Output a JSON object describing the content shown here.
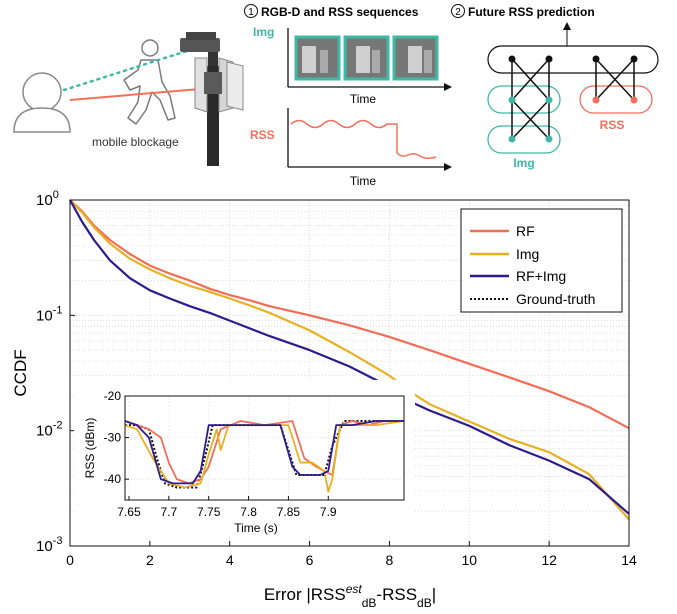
{
  "diagram": {
    "step1_num": "1",
    "step1_title": "RGB-D and RSS sequences",
    "step2_num": "2",
    "step2_title": "Future RSS prediction",
    "blockage_label": "mobile blockage",
    "img_label": "Img",
    "rss_label": "RSS",
    "time_label_top": "Time",
    "time_label_bottom": "Time",
    "net_rss_label": "RSS",
    "net_img_label": "Img",
    "colors": {
      "img": "#3fb8a6",
      "rss": "#f0705a"
    }
  },
  "chart_data": [
    {
      "type": "line",
      "title": "",
      "xlabel_prefix": "Error |RSS",
      "xlabel_sup": "est",
      "xlabel_sub1": "dB",
      "xlabel_mid": "-RSS",
      "xlabel_sub2": "dB",
      "xlabel_suffix": "|",
      "ylabel": "CCDF",
      "yscale": "log",
      "xlim": [
        0,
        14
      ],
      "ylim": [
        0.001,
        1
      ],
      "xticks": [
        0,
        2,
        4,
        6,
        8,
        10,
        12,
        14
      ],
      "yticks": [
        {
          "value": 1,
          "base": "10",
          "exp": "0"
        },
        {
          "value": 0.1,
          "base": "10",
          "exp": "-1"
        },
        {
          "value": 0.01,
          "base": "10",
          "exp": "-2"
        },
        {
          "value": 0.001,
          "base": "10",
          "exp": "-3"
        }
      ],
      "grid": true,
      "legend_position": "top-right",
      "series": [
        {
          "name": "RF",
          "color": "#f26d55",
          "dash": "solid",
          "x": [
            0,
            0.3,
            0.6,
            1,
            1.5,
            2,
            2.5,
            3,
            3.5,
            4,
            4.5,
            5,
            6,
            7,
            8,
            9,
            10,
            11,
            12,
            13,
            14
          ],
          "y": [
            1,
            0.8,
            0.6,
            0.45,
            0.34,
            0.27,
            0.23,
            0.2,
            0.17,
            0.15,
            0.135,
            0.12,
            0.1,
            0.082,
            0.065,
            0.05,
            0.038,
            0.029,
            0.022,
            0.016,
            0.0105
          ]
        },
        {
          "name": "Img",
          "color": "#e8b023",
          "dash": "solid",
          "x": [
            0,
            0.3,
            0.6,
            1,
            1.5,
            2,
            2.5,
            3,
            3.5,
            4,
            4.5,
            5,
            6,
            7,
            8,
            8.5,
            9,
            10,
            11,
            12,
            13,
            14
          ],
          "y": [
            1,
            0.78,
            0.58,
            0.42,
            0.31,
            0.25,
            0.21,
            0.18,
            0.16,
            0.14,
            0.122,
            0.105,
            0.074,
            0.048,
            0.03,
            0.022,
            0.017,
            0.012,
            0.0085,
            0.0065,
            0.0042,
            0.0017
          ]
        },
        {
          "name": "RF+Img",
          "color": "#2e1a8f",
          "dash": "solid",
          "x": [
            0,
            0.3,
            0.6,
            1,
            1.5,
            2,
            2.5,
            3,
            3.5,
            4,
            4.5,
            5,
            6,
            7,
            8,
            8.5,
            9,
            10,
            11,
            12,
            13,
            14
          ],
          "y": [
            1,
            0.65,
            0.45,
            0.3,
            0.21,
            0.165,
            0.14,
            0.12,
            0.105,
            0.09,
            0.077,
            0.066,
            0.05,
            0.036,
            0.024,
            0.018,
            0.015,
            0.011,
            0.0075,
            0.0055,
            0.0038,
            0.0019
          ]
        },
        {
          "name": "Ground-truth",
          "color": "#111111",
          "dash": "dotted",
          "x": [],
          "y": []
        }
      ]
    },
    {
      "type": "line",
      "title": "",
      "xlabel": "Time (s)",
      "ylabel": "RSS (dBm)",
      "xlim": [
        7.645,
        7.995
      ],
      "ylim": [
        -45,
        -20
      ],
      "xticks": [
        7.65,
        7.7,
        7.75,
        7.8,
        7.85,
        7.9
      ],
      "xtick_labels": [
        "7.65",
        "7.7",
        "7.75",
        "7.8",
        "7.85",
        "7.9"
      ],
      "yticks": [
        -20,
        -30,
        -40
      ],
      "ytick_labels": [
        "-20",
        "-30",
        "-40"
      ],
      "series": [
        {
          "name": "Ground-truth",
          "color": "#111111",
          "dash": "dotted",
          "x": [
            7.645,
            7.66,
            7.675,
            7.685,
            7.695,
            7.71,
            7.735,
            7.745,
            7.755,
            7.8,
            7.84,
            7.85,
            7.86,
            7.895,
            7.905,
            7.92,
            7.95,
            7.995
          ],
          "y": [
            -27,
            -27,
            -28,
            -35,
            -41,
            -42,
            -42,
            -35,
            -27,
            -27,
            -27,
            -33,
            -39,
            -39,
            -32,
            -26,
            -26,
            -26
          ]
        },
        {
          "name": "RF",
          "color": "#f26d55",
          "dash": "solid",
          "x": [
            7.645,
            7.66,
            7.675,
            7.69,
            7.7,
            7.71,
            7.725,
            7.74,
            7.75,
            7.765,
            7.79,
            7.82,
            7.855,
            7.87,
            7.885,
            7.895,
            7.905,
            7.915,
            7.93,
            7.95,
            7.97,
            7.995
          ],
          "y": [
            -26,
            -27,
            -28,
            -30,
            -36,
            -40,
            -41,
            -40,
            -37,
            -28,
            -26,
            -27,
            -26,
            -35,
            -37,
            -38,
            -39,
            -27,
            -26,
            -27,
            -26,
            -26
          ]
        },
        {
          "name": "Img",
          "color": "#e8b023",
          "dash": "solid",
          "x": [
            7.645,
            7.66,
            7.68,
            7.7,
            7.72,
            7.74,
            7.75,
            7.76,
            7.765,
            7.775,
            7.8,
            7.85,
            7.865,
            7.88,
            7.895,
            7.9,
            7.905,
            7.915,
            7.93,
            7.96,
            7.995
          ],
          "y": [
            -27,
            -28,
            -35,
            -41,
            -42,
            -41,
            -34,
            -28,
            -33,
            -27,
            -27,
            -27,
            -36,
            -36,
            -38,
            -43,
            -40,
            -27,
            -27,
            -27,
            -26
          ]
        },
        {
          "name": "RF+Img",
          "color": "#2e1a8f",
          "dash": "solid",
          "x": [
            7.645,
            7.66,
            7.675,
            7.69,
            7.705,
            7.73,
            7.74,
            7.75,
            7.8,
            7.84,
            7.855,
            7.865,
            7.89,
            7.9,
            7.91,
            7.93,
            7.96,
            7.995
          ],
          "y": [
            -26,
            -27,
            -30,
            -40,
            -41,
            -41,
            -38,
            -27,
            -27,
            -27,
            -37,
            -39,
            -39,
            -38,
            -27,
            -27,
            -26,
            -26
          ]
        }
      ]
    }
  ]
}
